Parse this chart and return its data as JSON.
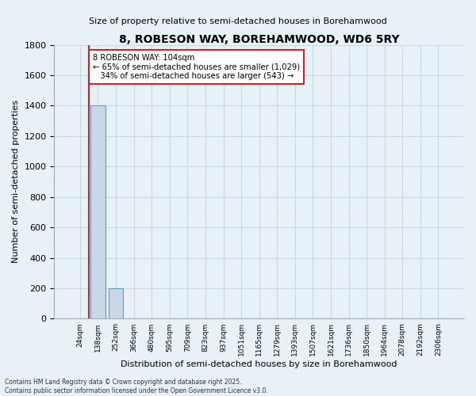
{
  "title": "8, ROBESON WAY, BOREHAMWOOD, WD6 5RY",
  "subtitle": "Size of property relative to semi-detached houses in Borehamwood",
  "xlabel": "Distribution of semi-detached houses by size in Borehamwood",
  "ylabel": "Number of semi-detached properties",
  "categories": [
    "24sqm",
    "138sqm",
    "252sqm",
    "366sqm",
    "480sqm",
    "595sqm",
    "709sqm",
    "823sqm",
    "937sqm",
    "1051sqm",
    "1165sqm",
    "1279sqm",
    "1393sqm",
    "1507sqm",
    "1621sqm",
    "1736sqm",
    "1850sqm",
    "1964sqm",
    "2078sqm",
    "2192sqm",
    "2306sqm"
  ],
  "values": [
    0,
    1400,
    200,
    0,
    0,
    0,
    0,
    0,
    0,
    0,
    0,
    0,
    0,
    0,
    0,
    0,
    0,
    0,
    0,
    0,
    0
  ],
  "bar_color": "#c8d8e8",
  "bar_edge_color": "#5a9fc8",
  "grid_color": "#c8d8e4",
  "background_color": "#e8f0f8",
  "vline_x": 0.5,
  "vline_color": "#cc2222",
  "ylim": [
    0,
    1800
  ],
  "yticks": [
    0,
    200,
    400,
    600,
    800,
    1000,
    1200,
    1400,
    1600,
    1800
  ],
  "annotation_title": "8 ROBESON WAY: 104sqm",
  "annotation_line1": "← 65% of semi-detached houses are smaller (1,029)",
  "annotation_line2": "34% of semi-detached houses are larger (543) →",
  "annotation_box_color": "#cc2222",
  "footer": "Contains HM Land Registry data © Crown copyright and database right 2025.\nContains public sector information licensed under the Open Government Licence v3.0."
}
